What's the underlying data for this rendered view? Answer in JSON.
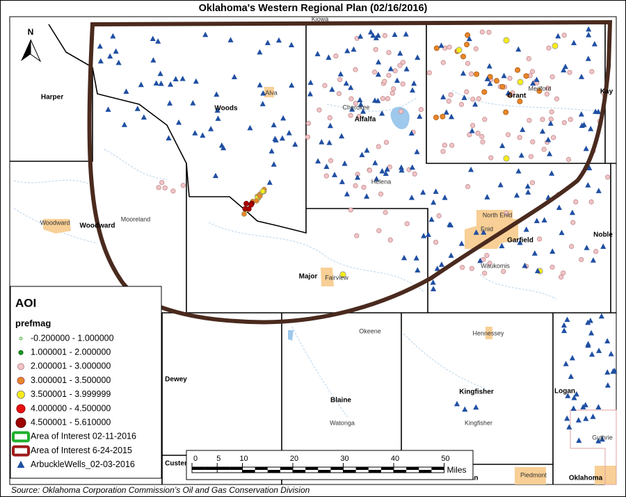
{
  "title": "Oklahoma's Western Regional Plan (02/16/2016)",
  "north_arrow": "N",
  "counties": [
    "Harper",
    "Woods",
    "Alfalfa",
    "Grant",
    "Kay",
    "Woodward",
    "Major",
    "Garfield",
    "Noble",
    "Dewey",
    "Blaine",
    "Kingfisher",
    "Logan",
    "Custer",
    "Canadian",
    "Oklahoma"
  ],
  "cities": [
    "Kiowa",
    "Alva",
    "Cherokee",
    "Medford",
    "Helena",
    "Woodward",
    "Mooreland",
    "North Enid",
    "Enid",
    "Waukomis",
    "Fairview",
    "Okeene",
    "Hennessey",
    "Watonga",
    "Kingfisher",
    "Guthrie",
    "Piedmont"
  ],
  "legend": {
    "title": "AOI",
    "subtitle": "prefmag",
    "items": [
      "-0.200000 - 1.000000",
      "1.000001 - 2.000000",
      "2.000001 - 3.000000",
      "3.000001 - 3.500000",
      "3.500001 - 3.999999",
      "4.000000 - 4.500000",
      "4.500001 - 5.610000",
      "Area of Interest 02-11-2016",
      "Area of Interest 6-24-2015",
      "ArbuckleWells_02-03-2016"
    ]
  },
  "scale_bar": {
    "ticks": [
      0,
      5,
      10,
      20,
      30,
      40,
      50
    ],
    "unit": "Miles"
  },
  "source": "Source: Oklahoma Corporation Commission’s Oil and Gas Conservation Division"
}
